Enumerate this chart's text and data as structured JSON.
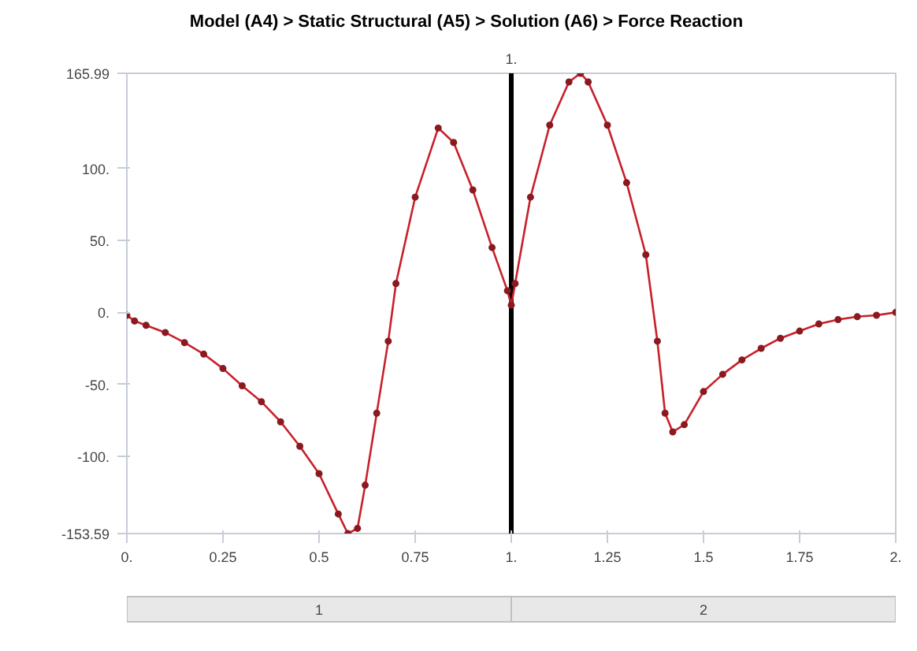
{
  "chart_data": {
    "type": "line",
    "title": "Model (A4) > Static Structural (A5) > Solution (A6) > Force Reaction",
    "x": [
      0,
      0.02,
      0.05,
      0.1,
      0.15,
      0.2,
      0.25,
      0.3,
      0.35,
      0.4,
      0.45,
      0.5,
      0.55,
      0.575,
      0.6,
      0.62,
      0.65,
      0.68,
      0.7,
      0.75,
      0.81,
      0.85,
      0.9,
      0.95,
      0.99,
      1.0,
      1.01,
      1.05,
      1.1,
      1.15,
      1.18,
      1.2,
      1.25,
      1.3,
      1.35,
      1.38,
      1.4,
      1.42,
      1.45,
      1.5,
      1.55,
      1.6,
      1.65,
      1.7,
      1.75,
      1.8,
      1.85,
      1.9,
      1.95,
      2.0
    ],
    "series": [
      {
        "color": "#c8202a",
        "values": [
          -2,
          -6,
          -9,
          -14,
          -21,
          -29,
          -39,
          -51,
          -62,
          -76,
          -93,
          -112,
          -140,
          -153.59,
          -150,
          -120,
          -70,
          -20,
          20,
          80,
          128,
          118,
          85,
          45,
          15,
          5,
          20,
          80,
          130,
          160,
          165.99,
          160,
          130,
          90,
          40,
          -20,
          -70,
          -83,
          -78,
          -55,
          -43,
          -33,
          -25,
          -18,
          -13,
          -8,
          -5,
          -3,
          -2,
          0
        ]
      }
    ],
    "xlim": [
      0,
      2
    ],
    "xticks": [
      {
        "value": 0,
        "label": "0."
      },
      0.25,
      0.5,
      0.75,
      {
        "value": 1,
        "label": "1."
      },
      1.25,
      1.5,
      1.75,
      {
        "value": 2,
        "label": "2."
      }
    ],
    "ylim": [
      -153.59,
      165.99
    ],
    "yticks": [
      -153.59,
      {
        "value": -100,
        "label": "-100."
      },
      {
        "value": -50,
        "label": "-50."
      },
      {
        "value": 0,
        "label": "0."
      },
      {
        "value": 50,
        "label": "50."
      },
      {
        "value": 100,
        "label": "100."
      },
      165.99
    ],
    "ref_lines": [
      {
        "axis": "x",
        "value": 1,
        "label": "1.",
        "color": "#000000"
      }
    ],
    "annotations": [
      "1",
      "2"
    ],
    "marker": "circle",
    "grid": false
  }
}
